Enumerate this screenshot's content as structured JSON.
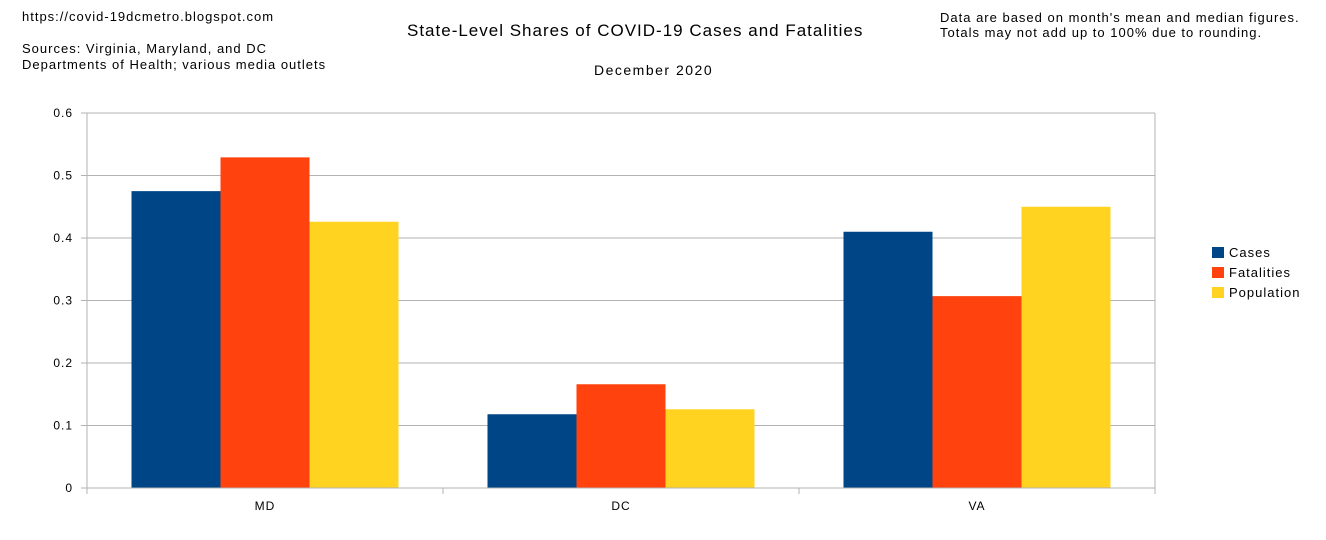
{
  "header": {
    "url": "https://covid-19dcmetro.blogspot.com",
    "sources_line1": "Sources: Virginia, Maryland, and DC",
    "sources_line2": "Departments of Health; various media outlets",
    "note": "Data are based on month's mean and median figures. Totals may not add up to 100% due to rounding."
  },
  "colors": {
    "cases": "#004586",
    "fatalities": "#ff420e",
    "population": "#ffd320",
    "grid": "#b3b3b3"
  },
  "chart_data": {
    "type": "bar",
    "title": "State-Level Shares of COVID-19 Cases and Fatalities",
    "subtitle": "December 2020",
    "xlabel": "",
    "ylabel": "",
    "ylim": [
      0,
      0.6
    ],
    "yticks": [
      "0",
      "0.1",
      "0.2",
      "0.3",
      "0.4",
      "0.5",
      "0.6"
    ],
    "ytick_values": [
      0,
      0.1,
      0.2,
      0.3,
      0.4,
      0.5,
      0.6
    ],
    "grid": true,
    "legend_position": "right",
    "categories": [
      "MD",
      "DC",
      "VA"
    ],
    "series": [
      {
        "name": "Cases",
        "values": [
          0.475,
          0.118,
          0.41
        ]
      },
      {
        "name": "Fatalities",
        "values": [
          0.529,
          0.166,
          0.307
        ]
      },
      {
        "name": "Population",
        "values": [
          0.426,
          0.126,
          0.45
        ]
      }
    ]
  }
}
